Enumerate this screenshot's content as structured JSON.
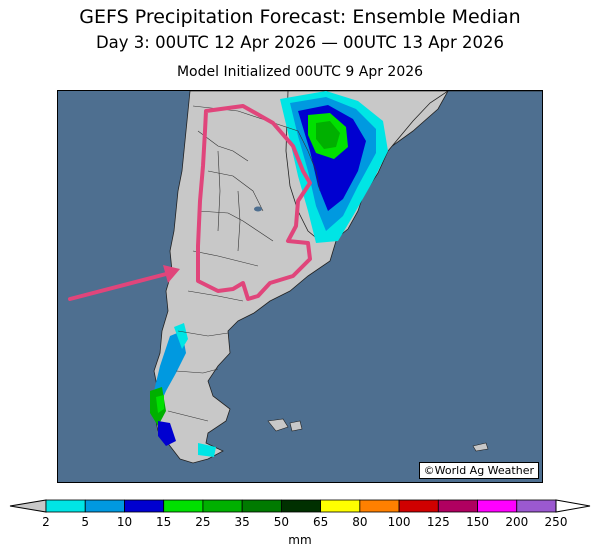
{
  "title": "GEFS Precipitation Forecast: Ensemble Median",
  "subtitle": "Day 3: 00UTC 12 Apr 2026 — 00UTC 13 Apr 2026",
  "init_line": "Model Initialized 00UTC 9 Apr 2026",
  "credit": "©World Ag Weather",
  "colors": {
    "ocean": "#4e6f90",
    "land": "#c8c8c8",
    "annotation": "#e0457b"
  },
  "legend": {
    "unit": "mm",
    "ticks": [
      "2",
      "5",
      "10",
      "15",
      "25",
      "35",
      "50",
      "65",
      "80",
      "100",
      "125",
      "150",
      "200",
      "250"
    ],
    "colors": [
      "#00e5e5",
      "#0099e0",
      "#0000d0",
      "#00e000",
      "#00b000",
      "#007a00",
      "#003000",
      "#ffff00",
      "#ff8000",
      "#d00000",
      "#b00060",
      "#ff00ff",
      "#9b59d0"
    ],
    "under_color": "#c8c8c8",
    "over_color": "#ffffff"
  }
}
